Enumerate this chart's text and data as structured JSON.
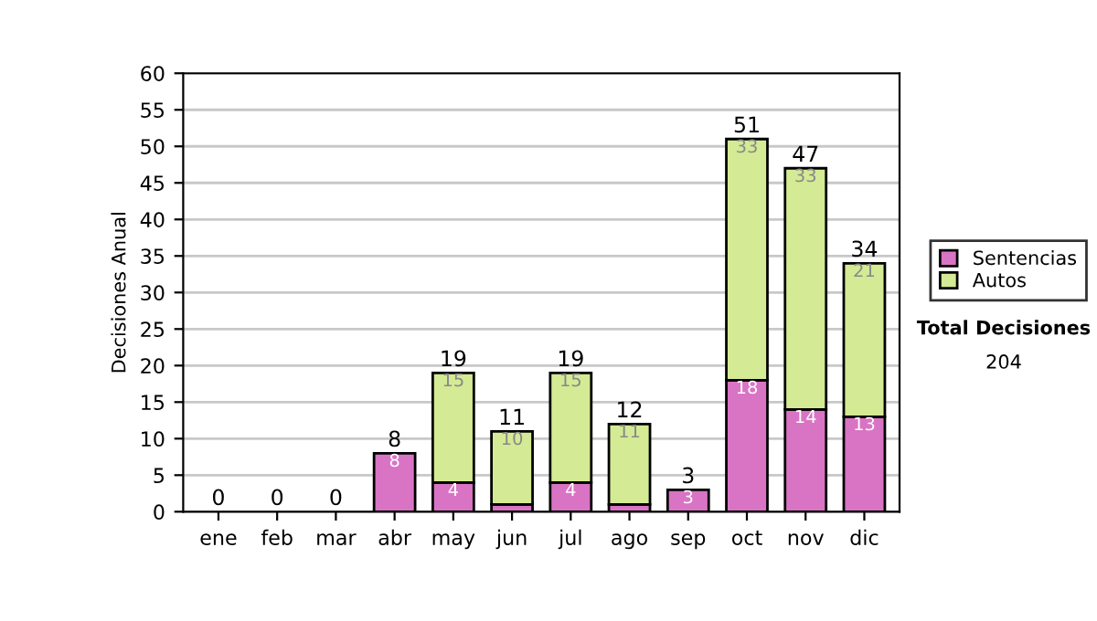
{
  "chart_data": {
    "type": "bar",
    "stacked": true,
    "ylabel": "Decisiones Anual",
    "categories": [
      "ene",
      "feb",
      "mar",
      "abr",
      "may",
      "jun",
      "jul",
      "ago",
      "sep",
      "oct",
      "nov",
      "dic"
    ],
    "series": [
      {
        "name": "Sentencias",
        "color": "#d974c4",
        "values": [
          0,
          0,
          0,
          8,
          4,
          1,
          4,
          1,
          3,
          18,
          14,
          13
        ],
        "value_labels": [
          null,
          null,
          null,
          "8",
          "4",
          null,
          "4",
          null,
          "3",
          "18",
          "14",
          "13"
        ]
      },
      {
        "name": "Autos",
        "color": "#d4ea94",
        "values": [
          0,
          0,
          0,
          0,
          15,
          10,
          15,
          11,
          0,
          33,
          33,
          21
        ],
        "value_labels": [
          null,
          null,
          null,
          null,
          "15",
          "10",
          "15",
          "11",
          null,
          "33",
          "33",
          "21"
        ]
      }
    ],
    "totals": [
      "0",
      "0",
      "0",
      "8",
      "19",
      "11",
      "19",
      "12",
      "3",
      "51",
      "47",
      "34"
    ],
    "ylim": [
      0,
      60
    ],
    "yticks": [
      0,
      5,
      10,
      15,
      20,
      25,
      30,
      35,
      40,
      45,
      50,
      55,
      60
    ],
    "grid": "y",
    "legend": "right",
    "annotations": [
      "Total Decisiones",
      "204"
    ]
  }
}
